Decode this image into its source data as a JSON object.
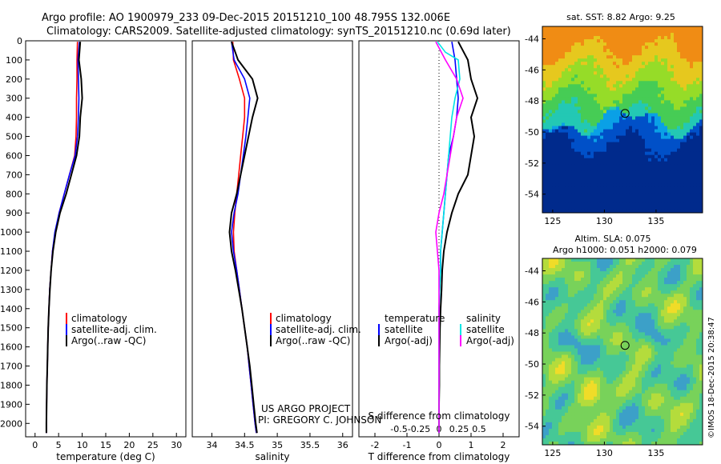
{
  "header": {
    "line1": "Argo profile: AO 1900979_233 09-Dec-2015 20151210_100 48.795S 132.006E",
    "line2": "Climatology: CARS2009. Satellite-adjusted climatology: synTS_20151210.nc (0.69d later)"
  },
  "colors": {
    "clim": "#ff0000",
    "sat": "#0000ff",
    "argo": "#000000",
    "sat_s": "#00e5e5",
    "argo_s": "#ff00ff"
  },
  "chart_data": [
    {
      "type": "line",
      "xlabel": "temperature (deg C)",
      "ylabel": "",
      "xlim": [
        -2,
        32
      ],
      "ylim": [
        2070,
        0
      ],
      "xticks": [
        0,
        5,
        10,
        15,
        20,
        25,
        30
      ],
      "yticks": [
        0,
        100,
        200,
        300,
        400,
        500,
        600,
        700,
        800,
        900,
        1000,
        1100,
        1200,
        1300,
        1400,
        1500,
        1600,
        1700,
        1800,
        1900,
        2000
      ],
      "legend": [
        "climatology",
        "satellite-adj. clim.",
        "Argo(..raw -QC)"
      ],
      "series": [
        {
          "name": "climatology",
          "color": "clim",
          "points": [
            [
              9.0,
              5
            ],
            [
              8.9,
              100
            ],
            [
              8.9,
              200
            ],
            [
              8.8,
              300
            ],
            [
              8.8,
              400
            ],
            [
              8.7,
              500
            ],
            [
              8.4,
              600
            ],
            [
              7.3,
              700
            ],
            [
              6.2,
              800
            ],
            [
              5.1,
              900
            ],
            [
              4.3,
              1000
            ],
            [
              3.7,
              1100
            ],
            [
              3.4,
              1200
            ],
            [
              3.1,
              1300
            ],
            [
              2.95,
              1400
            ],
            [
              2.8,
              1500
            ],
            [
              2.7,
              1600
            ],
            [
              2.6,
              1700
            ],
            [
              2.5,
              1800
            ],
            [
              2.45,
              1900
            ],
            [
              2.4,
              2000
            ],
            [
              2.4,
              2050
            ]
          ]
        },
        {
          "name": "satellite-adj. clim.",
          "color": "sat",
          "points": [
            [
              9.4,
              5
            ],
            [
              9.1,
              100
            ],
            [
              9.2,
              200
            ],
            [
              9.3,
              300
            ],
            [
              9.2,
              400
            ],
            [
              9.0,
              500
            ],
            [
              8.5,
              600
            ],
            [
              7.3,
              700
            ],
            [
              6.2,
              800
            ],
            [
              5.1,
              900
            ],
            [
              4.2,
              1000
            ],
            [
              3.7,
              1100
            ],
            [
              3.4,
              1200
            ],
            [
              3.1,
              1300
            ],
            [
              2.95,
              1400
            ],
            [
              2.8,
              1500
            ],
            [
              2.7,
              1600
            ],
            [
              2.6,
              1700
            ],
            [
              2.5,
              1800
            ],
            [
              2.45,
              1900
            ],
            [
              2.4,
              2000
            ],
            [
              2.4,
              2050
            ]
          ]
        },
        {
          "name": "Argo(..raw -QC)",
          "color": "argo",
          "points": [
            [
              9.6,
              5
            ],
            [
              9.3,
              100
            ],
            [
              9.8,
              200
            ],
            [
              10.0,
              300
            ],
            [
              9.6,
              400
            ],
            [
              9.4,
              500
            ],
            [
              8.8,
              600
            ],
            [
              7.7,
              700
            ],
            [
              6.6,
              800
            ],
            [
              5.3,
              900
            ],
            [
              4.4,
              1000
            ],
            [
              3.8,
              1100
            ],
            [
              3.4,
              1200
            ],
            [
              3.15,
              1300
            ],
            [
              2.95,
              1400
            ],
            [
              2.8,
              1500
            ],
            [
              2.7,
              1600
            ],
            [
              2.6,
              1700
            ],
            [
              2.5,
              1800
            ],
            [
              2.45,
              1900
            ],
            [
              2.4,
              2000
            ],
            [
              2.4,
              2050
            ]
          ]
        }
      ]
    },
    {
      "type": "line",
      "xlabel": "salinity",
      "ylabel": "",
      "xlim": [
        33.7,
        36.15
      ],
      "ylim": [
        2070,
        0
      ],
      "xticks": [
        34,
        34.5,
        35,
        35.5,
        36
      ],
      "legend": [
        "climatology",
        "satellite-adj. clim.",
        "Argo(..raw -QC)"
      ],
      "annotation": [
        "US ARGO PROJECT",
        "PI: GREGORY C. JOHNSON"
      ],
      "series": [
        {
          "name": "climatology",
          "color": "clim",
          "points": [
            [
              34.32,
              5
            ],
            [
              34.33,
              100
            ],
            [
              34.42,
              200
            ],
            [
              34.5,
              300
            ],
            [
              34.5,
              400
            ],
            [
              34.47,
              500
            ],
            [
              34.44,
              600
            ],
            [
              34.41,
              700
            ],
            [
              34.38,
              800
            ],
            [
              34.35,
              900
            ],
            [
              34.33,
              1000
            ],
            [
              34.34,
              1100
            ],
            [
              34.38,
              1200
            ],
            [
              34.42,
              1300
            ],
            [
              34.46,
              1400
            ],
            [
              34.5,
              1500
            ],
            [
              34.54,
              1600
            ],
            [
              34.57,
              1700
            ],
            [
              34.6,
              1800
            ],
            [
              34.63,
              1900
            ],
            [
              34.66,
              2000
            ],
            [
              34.68,
              2050
            ]
          ]
        },
        {
          "name": "satellite-adj. clim.",
          "color": "sat",
          "points": [
            [
              34.3,
              5
            ],
            [
              34.34,
              100
            ],
            [
              34.5,
              200
            ],
            [
              34.58,
              300
            ],
            [
              34.55,
              400
            ],
            [
              34.52,
              500
            ],
            [
              34.48,
              600
            ],
            [
              34.44,
              700
            ],
            [
              34.4,
              800
            ],
            [
              34.34,
              900
            ],
            [
              34.3,
              1000
            ],
            [
              34.33,
              1100
            ],
            [
              34.38,
              1200
            ],
            [
              34.42,
              1300
            ],
            [
              34.46,
              1400
            ],
            [
              34.5,
              1500
            ],
            [
              34.54,
              1600
            ],
            [
              34.57,
              1700
            ],
            [
              34.6,
              1800
            ],
            [
              34.63,
              1900
            ],
            [
              34.66,
              2000
            ],
            [
              34.68,
              2050
            ]
          ]
        },
        {
          "name": "Argo(..raw -QC)",
          "color": "argo",
          "points": [
            [
              34.3,
              5
            ],
            [
              34.4,
              100
            ],
            [
              34.62,
              200
            ],
            [
              34.7,
              300
            ],
            [
              34.62,
              400
            ],
            [
              34.56,
              500
            ],
            [
              34.5,
              600
            ],
            [
              34.44,
              700
            ],
            [
              34.38,
              800
            ],
            [
              34.3,
              900
            ],
            [
              34.27,
              1000
            ],
            [
              34.3,
              1100
            ],
            [
              34.36,
              1200
            ],
            [
              34.41,
              1300
            ],
            [
              34.46,
              1400
            ],
            [
              34.5,
              1500
            ],
            [
              34.54,
              1600
            ],
            [
              34.58,
              1700
            ],
            [
              34.61,
              1800
            ],
            [
              34.64,
              1900
            ],
            [
              34.67,
              2000
            ],
            [
              34.69,
              2050
            ]
          ]
        }
      ]
    },
    {
      "type": "line",
      "xlabel": "T difference from climatology",
      "xlabel_top": "S difference from climatology",
      "xlim": [
        -2.5,
        2.5
      ],
      "ylim": [
        2070,
        0
      ],
      "xticks": [
        -2,
        -1,
        0,
        1,
        2
      ],
      "xtick_labels_top": [
        {
          "v": -1.25,
          "label": "-0.5"
        },
        {
          "v": -0.625,
          "label": "-0.25"
        },
        {
          "v": 0,
          "label": "0"
        },
        {
          "v": 0.625,
          "label": "0.25"
        },
        {
          "v": 1.25,
          "label": "0.5"
        }
      ],
      "legend_temperature_header": "temperature",
      "legend_salinity_header": "salinity",
      "legend_temperature": [
        "satellite",
        "Argo(-adj)"
      ],
      "legend_salinity": [
        "satellite",
        "Argo(-adj)"
      ],
      "series": [
        {
          "name": "satellite",
          "group": "temperature",
          "color": "sat",
          "points": [
            [
              0.4,
              5
            ],
            [
              0.5,
              100
            ],
            [
              0.55,
              200
            ],
            [
              0.6,
              300
            ],
            [
              0.55,
              400
            ],
            [
              0.45,
              500
            ],
            [
              0.3,
              600
            ],
            [
              0.25,
              700
            ],
            [
              0.2,
              800
            ],
            [
              0.15,
              900
            ],
            [
              0.1,
              1000
            ],
            [
              0.05,
              1100
            ],
            [
              0.05,
              1200
            ],
            [
              0.02,
              1300
            ],
            [
              0.0,
              1400
            ],
            [
              0.0,
              1500
            ],
            [
              0.0,
              1600
            ],
            [
              0.0,
              1700
            ],
            [
              0.0,
              1800
            ],
            [
              0.0,
              1900
            ],
            [
              0.0,
              2000
            ],
            [
              0.0,
              2050
            ]
          ]
        },
        {
          "name": "Argo(-adj)",
          "group": "temperature",
          "color": "argo",
          "points": [
            [
              0.6,
              5
            ],
            [
              0.9,
              100
            ],
            [
              1.0,
              200
            ],
            [
              1.2,
              300
            ],
            [
              1.0,
              400
            ],
            [
              1.1,
              500
            ],
            [
              1.0,
              600
            ],
            [
              0.9,
              700
            ],
            [
              0.6,
              800
            ],
            [
              0.4,
              900
            ],
            [
              0.25,
              1000
            ],
            [
              0.15,
              1100
            ],
            [
              0.1,
              1200
            ],
            [
              0.08,
              1300
            ],
            [
              0.05,
              1400
            ],
            [
              0.03,
              1500
            ],
            [
              0.02,
              1600
            ],
            [
              0.01,
              1700
            ],
            [
              0.01,
              1800
            ],
            [
              0.0,
              1900
            ],
            [
              0.0,
              2000
            ],
            [
              0.0,
              2050
            ]
          ]
        },
        {
          "name": "satellite",
          "group": "salinity",
          "color": "sat_s",
          "points": [
            [
              -0.05,
              5
            ],
            [
              0.2,
              60
            ],
            [
              0.6,
              100
            ],
            [
              0.65,
              200
            ],
            [
              0.5,
              300
            ],
            [
              0.4,
              400
            ],
            [
              0.35,
              500
            ],
            [
              0.3,
              600
            ],
            [
              0.25,
              700
            ],
            [
              0.2,
              800
            ],
            [
              0.15,
              900
            ],
            [
              0.1,
              1000
            ],
            [
              0.05,
              1100
            ],
            [
              0.05,
              1200
            ],
            [
              0.02,
              1300
            ],
            [
              0.0,
              1400
            ],
            [
              0.0,
              1500
            ],
            [
              0.0,
              1600
            ],
            [
              0.0,
              1700
            ],
            [
              0.0,
              1800
            ],
            [
              0.0,
              1900
            ],
            [
              0.0,
              2050
            ]
          ]
        },
        {
          "name": "Argo(-adj)",
          "group": "salinity",
          "color": "argo_s",
          "points": [
            [
              -0.1,
              5
            ],
            [
              0.2,
              100
            ],
            [
              0.55,
              200
            ],
            [
              0.75,
              300
            ],
            [
              0.55,
              400
            ],
            [
              0.45,
              500
            ],
            [
              0.35,
              600
            ],
            [
              0.25,
              700
            ],
            [
              0.15,
              800
            ],
            [
              0.0,
              900
            ],
            [
              -0.1,
              1000
            ],
            [
              -0.05,
              1100
            ],
            [
              0.0,
              1200
            ],
            [
              0.0,
              1300
            ],
            [
              0.0,
              1400
            ],
            [
              0.0,
              1500
            ],
            [
              0.0,
              1600
            ],
            [
              0.0,
              1700
            ],
            [
              0.0,
              1800
            ],
            [
              0.0,
              1900
            ],
            [
              0.0,
              2050
            ]
          ]
        }
      ]
    },
    {
      "type": "heatmap",
      "title": "sat. SST: 8.82 Argo: 9.25",
      "xlim": [
        124,
        139.5
      ],
      "ylim": [
        -55.2,
        -43.2
      ],
      "xticks": [
        125,
        130,
        135
      ],
      "yticks": [
        -44,
        -46,
        -48,
        -50,
        -52,
        -54
      ],
      "marker": {
        "lon": 132.0,
        "lat": -48.8
      },
      "palette": [
        "#002a8c",
        "#0050c8",
        "#0aa0e6",
        "#23c8b4",
        "#46cc55",
        "#96dc28",
        "#e6c81e",
        "#f08c14"
      ]
    },
    {
      "type": "heatmap",
      "title_line1": "Altim. SLA: 0.075",
      "title_line2": "Argo h1000: 0.051 h2000: 0.079",
      "xlim": [
        124,
        139.5
      ],
      "ylim": [
        -55.2,
        -43.2
      ],
      "xticks": [
        125,
        130,
        135
      ],
      "yticks": [
        -44,
        -46,
        -48,
        -50,
        -52,
        -54
      ],
      "marker": {
        "lon": 132.0,
        "lat": -48.8
      },
      "palette": [
        "#3c64dc",
        "#3ca0c8",
        "#46c896",
        "#78d25a",
        "#b4dc3c",
        "#f0dc28",
        "#f0a01e"
      ]
    }
  ],
  "footer": {
    "credit": "©IMOS 18-Dec-2015 20:38:47"
  }
}
